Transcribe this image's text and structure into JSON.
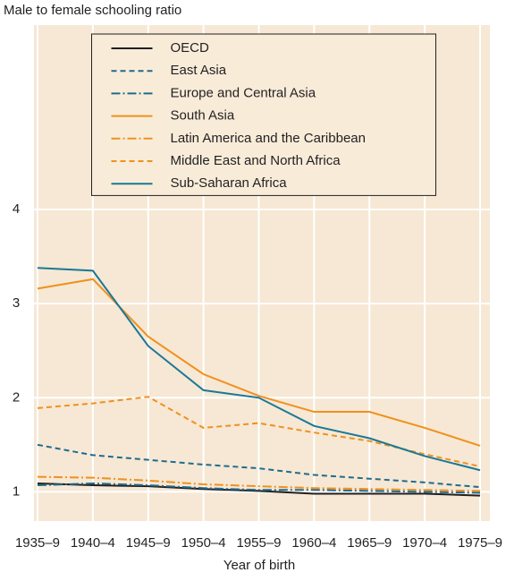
{
  "chart_data": {
    "type": "line",
    "y_label": "Male to female schooling ratio",
    "x_label": "Year of birth",
    "categories": [
      "1935–9",
      "1940–4",
      "1945–9",
      "1950–4",
      "1955–9",
      "1960–4",
      "1965–9",
      "1970–4",
      "1975–9"
    ],
    "series": [
      {
        "name": "OECD",
        "color": "#231f20",
        "dash": "solid",
        "values": [
          1.09,
          1.07,
          1.06,
          1.03,
          1.01,
          0.98,
          0.98,
          0.98,
          0.96
        ]
      },
      {
        "name": "East Asia",
        "color": "#1f6b8f",
        "dash": "dashed",
        "values": [
          1.5,
          1.39,
          1.34,
          1.29,
          1.25,
          1.18,
          1.14,
          1.1,
          1.05
        ]
      },
      {
        "name": "Europe and Central Asia",
        "color": "#1f6b8f",
        "dash": "dashdot",
        "values": [
          1.07,
          1.09,
          1.07,
          1.04,
          1.02,
          1.02,
          1.01,
          1.0,
          0.99
        ]
      },
      {
        "name": "South Asia",
        "color": "#f0901e",
        "dash": "solid",
        "values": [
          3.16,
          3.26,
          2.65,
          2.25,
          2.02,
          1.85,
          1.85,
          1.68,
          1.49
        ]
      },
      {
        "name": "Latin America and the Caribbean",
        "color": "#f0901e",
        "dash": "dashdot",
        "values": [
          1.16,
          1.15,
          1.12,
          1.08,
          1.06,
          1.04,
          1.03,
          1.02,
          1.01
        ]
      },
      {
        "name": "Middle East and North Africa",
        "color": "#f0901e",
        "dash": "dashed",
        "values": [
          1.89,
          1.94,
          2.01,
          1.68,
          1.73,
          1.63,
          1.54,
          1.4,
          1.27
        ]
      },
      {
        "name": "Sub-Saharan Africa",
        "color": "#1a7896",
        "dash": "solid",
        "values": [
          3.38,
          3.35,
          2.55,
          2.08,
          2.0,
          1.7,
          1.57,
          1.38,
          1.23
        ]
      }
    ],
    "ylim": [
      0.69,
      5.96
    ],
    "yticks": [
      1,
      2,
      3,
      4
    ],
    "grid": true,
    "legend": "upper center"
  }
}
